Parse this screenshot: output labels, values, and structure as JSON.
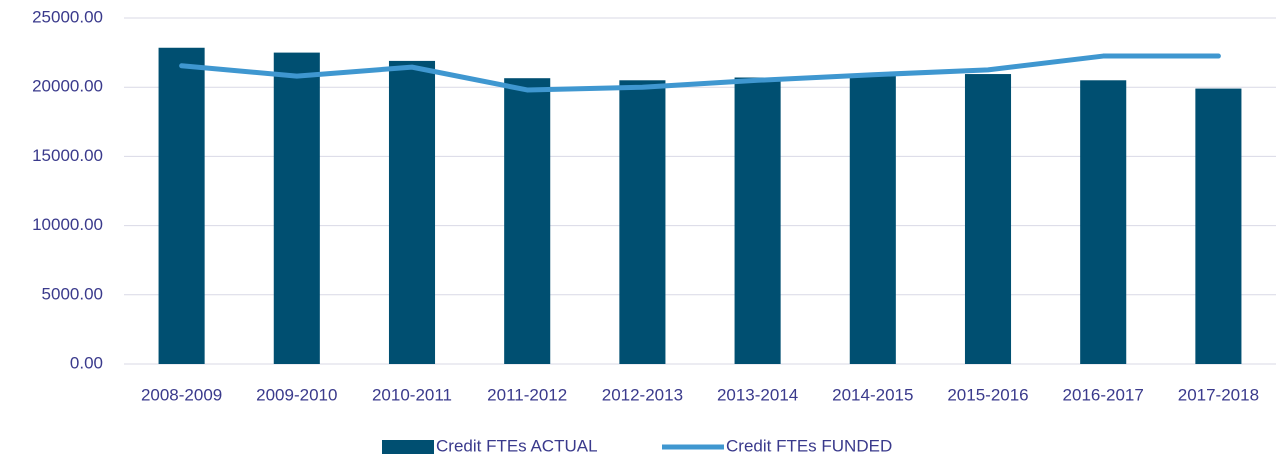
{
  "chart_data": {
    "type": "bar_line",
    "categories": [
      "2008-2009",
      "2009-2010",
      "2010-2011",
      "2011-2012",
      "2012-2013",
      "2013-2014",
      "2014-2015",
      "2015-2016",
      "2016-2017",
      "2017-2018"
    ],
    "series": [
      {
        "name": "Credit FTEs ACTUAL",
        "type": "bar",
        "color": "#004f71",
        "values": [
          22850,
          22500,
          21900,
          20650,
          20500,
          20700,
          20950,
          20950,
          20500,
          19900
        ]
      },
      {
        "name": "Credit FTEs FUNDED",
        "type": "line",
        "color": "#3f97d0",
        "values": [
          21550,
          20800,
          21450,
          19800,
          20000,
          20500,
          20900,
          21250,
          22250,
          22250
        ]
      }
    ],
    "ylim": [
      0,
      25000
    ],
    "yticks": [
      {
        "value": 0,
        "label": "0.00"
      },
      {
        "value": 5000,
        "label": "5000.00"
      },
      {
        "value": 10000,
        "label": "10000.00"
      },
      {
        "value": 15000,
        "label": "15000.00"
      },
      {
        "value": 20000,
        "label": "20000.00"
      },
      {
        "value": 25000,
        "label": "25000.00"
      }
    ],
    "grid": true,
    "legend": "bottom"
  }
}
